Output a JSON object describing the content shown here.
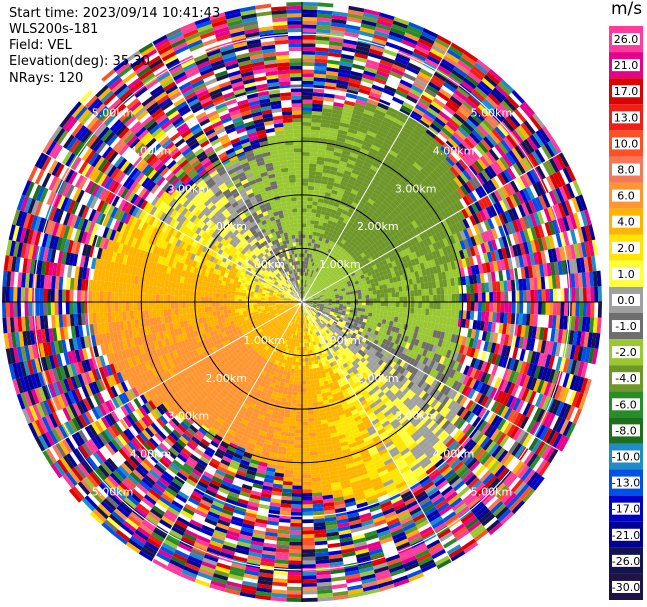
{
  "header": {
    "start_time": "Start time: 2023/09/14 10:41:43",
    "instrument": "WLS200s-181",
    "field": "Field: VEL",
    "elevation": "Elevation(deg): 35.30",
    "nrays": "NRays: 120"
  },
  "colorbar": {
    "unit": "m/s",
    "ticks": [
      "26.0",
      "21.0",
      "17.0",
      "13.0",
      "10.0",
      "8.0",
      "6.0",
      "4.0",
      "2.0",
      "1.0",
      "0.0",
      "-1.0",
      "-2.0",
      "-4.0",
      "-6.0",
      "-8.0",
      "-10.0",
      "-13.0",
      "-17.0",
      "-21.0",
      "-26.0",
      "-30.0"
    ],
    "colors": [
      "#ff3c9b",
      "#e6008c",
      "#dc0000",
      "#f01e14",
      "#ff5028",
      "#f5785a",
      "#ff9632",
      "#ffb400",
      "#ffe600",
      "#ffff3c",
      "#a0a0a0",
      "#6e6e6e",
      "#9ac832",
      "#6e9628",
      "#288c28",
      "#1e6e1e",
      "#1e8cc8",
      "#0050e6",
      "#0000c8",
      "#000096",
      "#141450",
      "#1e1446"
    ]
  },
  "chart_data": {
    "type": "heatmap",
    "field": "VEL",
    "units": "m/s",
    "elevation_deg": 35.3,
    "nrays": 120,
    "range_rings_km": [
      1.0,
      2.0,
      3.0,
      4.0,
      5.0
    ],
    "ring_labels": [
      "1.00km",
      "2.00km",
      "3.00km",
      "4.00km",
      "5.00km"
    ],
    "max_range_km": 5.6,
    "color_scale": [
      26.0,
      21.0,
      17.0,
      13.0,
      10.0,
      8.0,
      6.0,
      4.0,
      2.0,
      1.0,
      0.0,
      -1.0,
      -2.0,
      -4.0,
      -6.0,
      -8.0,
      -10.0,
      -13.0,
      -17.0,
      -21.0,
      -26.0,
      -30.0
    ],
    "pattern": {
      "toward_radar_sector": "north-east (green, -1 to -8 m/s)",
      "away_radar_sector": "south-west (yellow/orange, 2 to 6 m/s)",
      "noise_beyond_km": 3.6
    }
  }
}
